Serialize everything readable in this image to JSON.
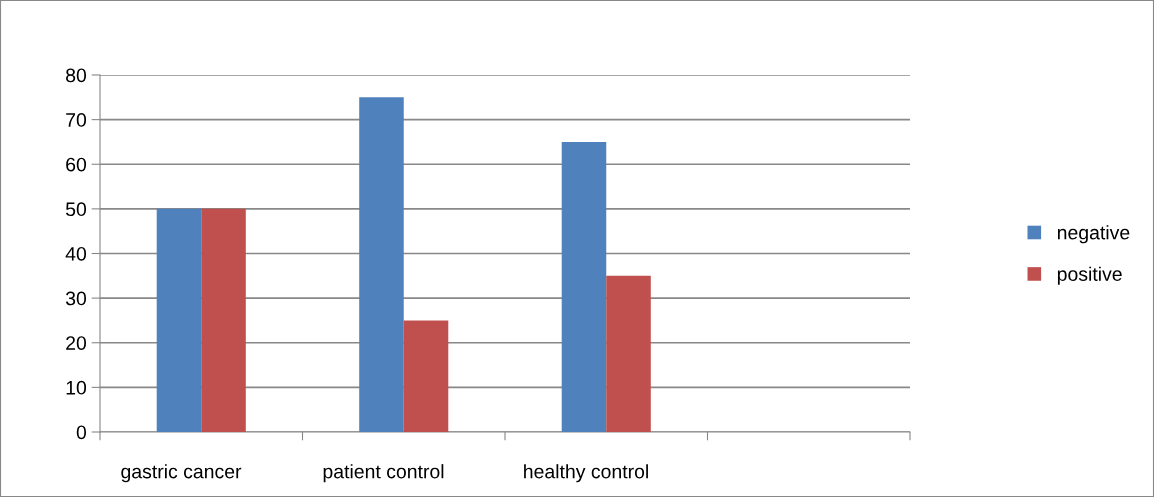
{
  "chart_data": {
    "type": "bar",
    "categories": [
      "gastric cancer",
      "patient control",
      "healthy control",
      null
    ],
    "series": [
      {
        "name": "negative",
        "color": "#4f81bd",
        "values": [
          50,
          75,
          65,
          null
        ]
      },
      {
        "name": "positive",
        "color": "#c0504d",
        "values": [
          50,
          25,
          35,
          null
        ]
      }
    ],
    "ylim": [
      0,
      80
    ],
    "yticks": [
      0,
      10,
      20,
      30,
      40,
      50,
      60,
      70,
      80
    ],
    "grid": "y",
    "legend": "right"
  }
}
